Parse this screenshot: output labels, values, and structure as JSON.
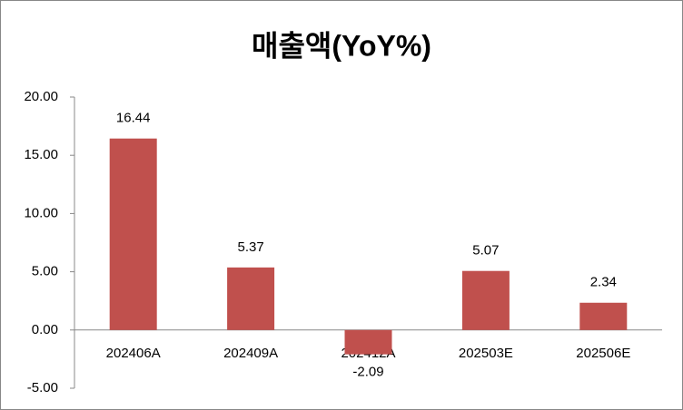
{
  "chart_data": {
    "type": "bar",
    "title": "매출액(YoY%)",
    "categories": [
      "202406A",
      "202409A",
      "202412A",
      "202503E",
      "202506E"
    ],
    "values": [
      16.44,
      5.37,
      -2.09,
      5.07,
      2.34
    ],
    "color": "#c0504d",
    "ylim": [
      -5,
      20
    ],
    "yticks": [
      {
        "value": -5,
        "label": "-5.00"
      },
      {
        "value": 0,
        "label": "0.00"
      },
      {
        "value": 5,
        "label": "5.00"
      },
      {
        "value": 10,
        "label": "10.00"
      },
      {
        "value": 15,
        "label": "15.00"
      },
      {
        "value": 20,
        "label": "20.00"
      }
    ],
    "grid": false
  }
}
